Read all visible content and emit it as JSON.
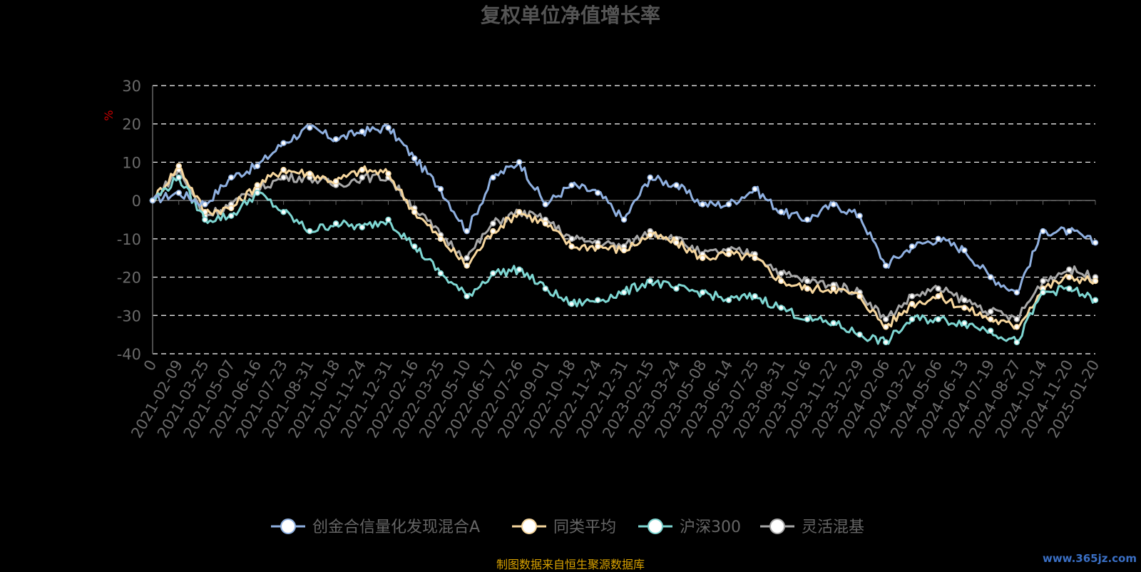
{
  "chart_data": {
    "type": "line",
    "title": "复权单位净值增长率",
    "ylabel": "%",
    "xlabel": "",
    "ylim": [
      -40,
      30
    ],
    "yticks": [
      30,
      20,
      10,
      0,
      -10,
      -20,
      -30,
      -40
    ],
    "grid": true,
    "legend_position": "bottom",
    "categories": [
      "0",
      "2021-02-09",
      "2021-03-25",
      "2021-05-07",
      "2021-06-16",
      "2021-07-23",
      "2021-08-31",
      "2021-10-18",
      "2021-11-24",
      "2021-12-31",
      "2022-02-16",
      "2022-03-25",
      "2022-05-10",
      "2022-06-17",
      "2022-07-26",
      "2022-09-01",
      "2022-10-18",
      "2022-11-24",
      "2022-12-31",
      "2023-02-15",
      "2023-03-24",
      "2023-05-08",
      "2023-06-14",
      "2023-07-25",
      "2023-08-31",
      "2023-10-16",
      "2023-11-22",
      "2023-12-29",
      "2024-02-06",
      "2024-03-22",
      "2024-05-06",
      "2024-06-13",
      "2024-07-19",
      "2024-08-27",
      "2024-10-14",
      "2024-11-20",
      "2025-01-20"
    ],
    "series": [
      {
        "name": "创金合信量化发现混合A",
        "color": "#8fb0e0",
        "values": [
          0,
          2,
          -1,
          6,
          9,
          15,
          19,
          16,
          18,
          19,
          11,
          3,
          -8,
          6,
          10,
          -1,
          4,
          2,
          -5,
          6,
          4,
          -1,
          -1,
          3,
          -3,
          -5,
          -1,
          -4,
          -17,
          -12,
          -10,
          -13,
          -20,
          -24,
          -8,
          -8,
          -11
        ]
      },
      {
        "name": "同类平均",
        "color": "#f7d79e",
        "values": [
          0,
          9,
          -3,
          -2,
          4,
          8,
          7,
          5,
          8,
          7,
          -3,
          -10,
          -17,
          -8,
          -3,
          -6,
          -12,
          -12,
          -13,
          -9,
          -11,
          -15,
          -14,
          -15,
          -21,
          -23,
          -23,
          -25,
          -33,
          -27,
          -25,
          -28,
          -31,
          -33,
          -23,
          -20,
          -21
        ]
      },
      {
        "name": "沪深300",
        "color": "#7ed6d2",
        "values": [
          0,
          6,
          -5,
          -4,
          2,
          -3,
          -8,
          -6,
          -7,
          -5,
          -12,
          -19,
          -25,
          -19,
          -18,
          -23,
          -27,
          -26,
          -24,
          -21,
          -23,
          -24,
          -26,
          -25,
          -28,
          -31,
          -32,
          -35,
          -37,
          -31,
          -31,
          -32,
          -34,
          -37,
          -24,
          -23,
          -26
        ]
      },
      {
        "name": "灵活混基",
        "color": "#a8a8a8",
        "values": [
          0,
          8,
          -4,
          -1,
          3,
          6,
          6,
          4,
          6,
          6,
          -2,
          -9,
          -15,
          -6,
          -3,
          -5,
          -10,
          -11,
          -12,
          -8,
          -10,
          -14,
          -13,
          -14,
          -19,
          -21,
          -22,
          -24,
          -31,
          -25,
          -23,
          -26,
          -29,
          -31,
          -21,
          -18,
          -20
        ]
      }
    ]
  },
  "credit": "制图数据来自恒生聚源数据库",
  "watermark": "www.365jz.com"
}
